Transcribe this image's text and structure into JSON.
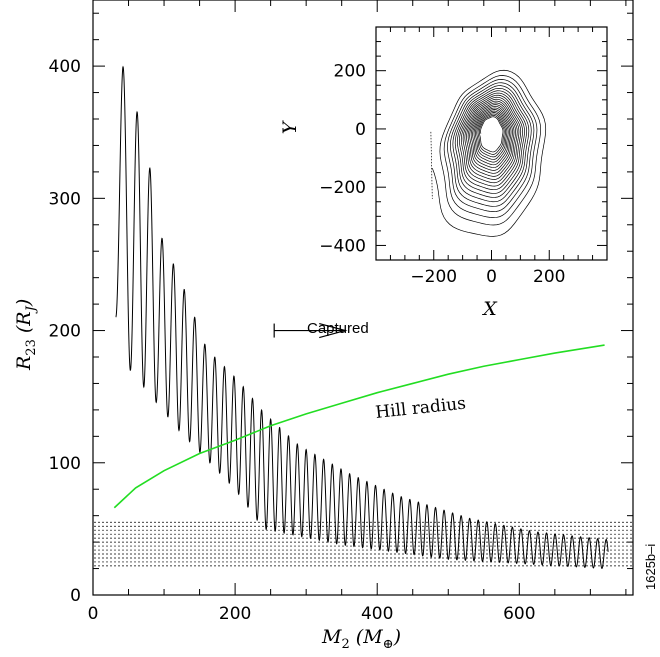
{
  "chart_data": [
    {
      "type": "line",
      "title": "",
      "xlabel_main": "M",
      "xlabel_sub": "2",
      "xlabel_unit_open": "(M",
      "xlabel_unit_sub": "⊕",
      "xlabel_unit_close": ")",
      "ylabel_main": "R",
      "ylabel_sub": "23",
      "ylabel_unit_open": "(R",
      "ylabel_unit_sub": "J",
      "ylabel_unit_close": ")",
      "xlim": [
        0,
        760
      ],
      "ylim": [
        0,
        450
      ],
      "xticks": [
        "0",
        "200",
        "400",
        "600"
      ],
      "xtick_values": [
        0,
        200,
        400,
        600
      ],
      "yticks": [
        "0",
        "100",
        "200",
        "300",
        "400"
      ],
      "ytick_values": [
        0,
        100,
        200,
        300,
        400
      ],
      "series": [
        {
          "key": "r23",
          "color": "#000000",
          "peaks": [
            [
              42,
              400
            ],
            [
              75,
              343
            ],
            [
              92,
              276
            ],
            [
              125,
              236
            ],
            [
              160,
              186
            ],
            [
              205,
              162
            ],
            [
              240,
              138
            ],
            [
              290,
              113
            ],
            [
              360,
              92
            ],
            [
              430,
              75
            ],
            [
              530,
              58
            ],
            [
              620,
              48
            ],
            [
              720,
              42
            ]
          ],
          "troughs": [
            [
              32,
              210
            ],
            [
              45,
              175
            ],
            [
              120,
              125
            ],
            [
              200,
              80
            ],
            [
              240,
              50
            ],
            [
              350,
              38
            ],
            [
              500,
              27
            ],
            [
              720,
              20
            ]
          ]
        },
        {
          "key": "hill",
          "label": "Hill radius",
          "color": "#22dd22",
          "points": [
            [
              30,
              66
            ],
            [
              60,
              81
            ],
            [
              100,
              94
            ],
            [
              150,
              107
            ],
            [
              200,
              117
            ],
            [
              250,
              128
            ],
            [
              300,
              137
            ],
            [
              350,
              145
            ],
            [
              400,
              153
            ],
            [
              450,
              160
            ],
            [
              500,
              167
            ],
            [
              550,
              173
            ],
            [
              600,
              178
            ],
            [
              650,
              183
            ],
            [
              720,
              189
            ]
          ]
        }
      ],
      "band": {
        "y_range": [
          22,
          55
        ],
        "x_range": [
          0,
          760
        ]
      },
      "annotations": {
        "captured": "Captured",
        "captured_arrow_from": 255,
        "captured_arrow_to": 355,
        "captured_arrow_y": 200,
        "hill_label": "Hill radius"
      },
      "figure_tag": "1625b–i"
    },
    {
      "type": "scatter",
      "title": "",
      "xlabel": "X",
      "ylabel": "Y",
      "xlim": [
        -400,
        400
      ],
      "ylim": [
        -450,
        350
      ],
      "xticks": [
        "−200",
        "0",
        "200"
      ],
      "xtick_values": [
        -200,
        0,
        200
      ],
      "yticks": [
        "200",
        "0",
        "−200",
        "−400"
      ],
      "ytick_values": [
        200,
        0,
        -200,
        -400
      ],
      "orbit": {
        "rx_outer": 205,
        "ry_outer": 310,
        "center_y": -90,
        "start_x": -210,
        "start_y": -10
      },
      "center_dot": [
        0,
        0
      ]
    }
  ]
}
